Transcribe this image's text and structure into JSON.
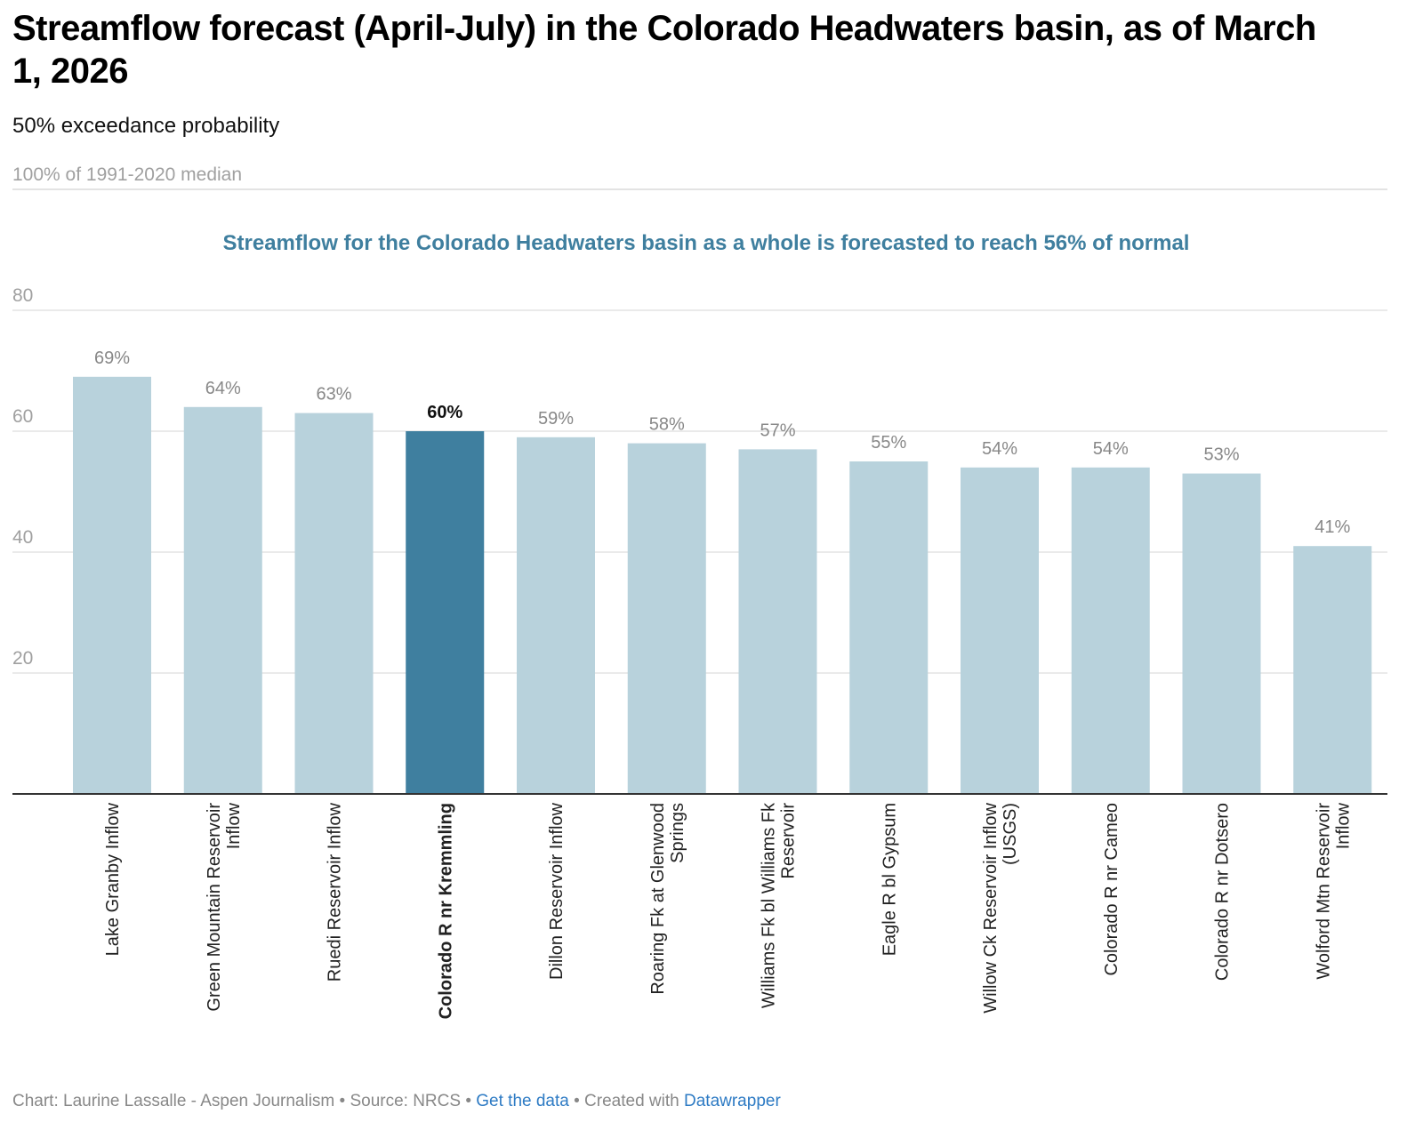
{
  "header": {
    "title": "Streamflow forecast (April-July) in the Colorado Headwaters basin, as of March 1, 2026",
    "subtitle": "50% exceedance probability"
  },
  "chart_data": {
    "type": "bar",
    "categories": [
      "Lake Granby Inflow",
      "Green Mountain Reservoir Inflow",
      "Ruedi Reservoir Inflow",
      "Colorado R nr Kremmling",
      "Dillon Reservoir Inflow",
      "Roaring Fk at Glenwood Springs",
      "Williams Fk bl Williams Fk Reservoir",
      "Eagle R bl Gypsum",
      "Willow Ck Reservoir Inflow (USGS)",
      "Colorado R nr Cameo",
      "Colorado R nr Dotsero",
      "Wolford Mtn Reservoir Inflow"
    ],
    "values": [
      69,
      64,
      63,
      60,
      59,
      58,
      57,
      55,
      54,
      54,
      53,
      41
    ],
    "value_labels": [
      "69%",
      "64%",
      "63%",
      "60%",
      "59%",
      "58%",
      "57%",
      "55%",
      "54%",
      "54%",
      "53%",
      "41%"
    ],
    "highlight": "Colorado R nr Kremmling",
    "ylim": [
      0,
      100
    ],
    "yticks": [
      20,
      40,
      60,
      80
    ],
    "reference_line": {
      "value": 100,
      "label": "100% of 1991-2020 median"
    },
    "annotation": "Streamflow for the Colorado Headwaters basin as a whole is forecasted to reach 56% of normal",
    "grid": true,
    "colors": {
      "bar": "#b8d2dc",
      "highlight": "#3f7f9f",
      "annotation": "#3f7f9f"
    }
  },
  "footer": {
    "credit": "Chart: Laurine Lassalle - Aspen Journalism • Source: NRCS • ",
    "get_data": "Get the data",
    "created": " • Created with ",
    "datawrapper": "Datawrapper"
  }
}
